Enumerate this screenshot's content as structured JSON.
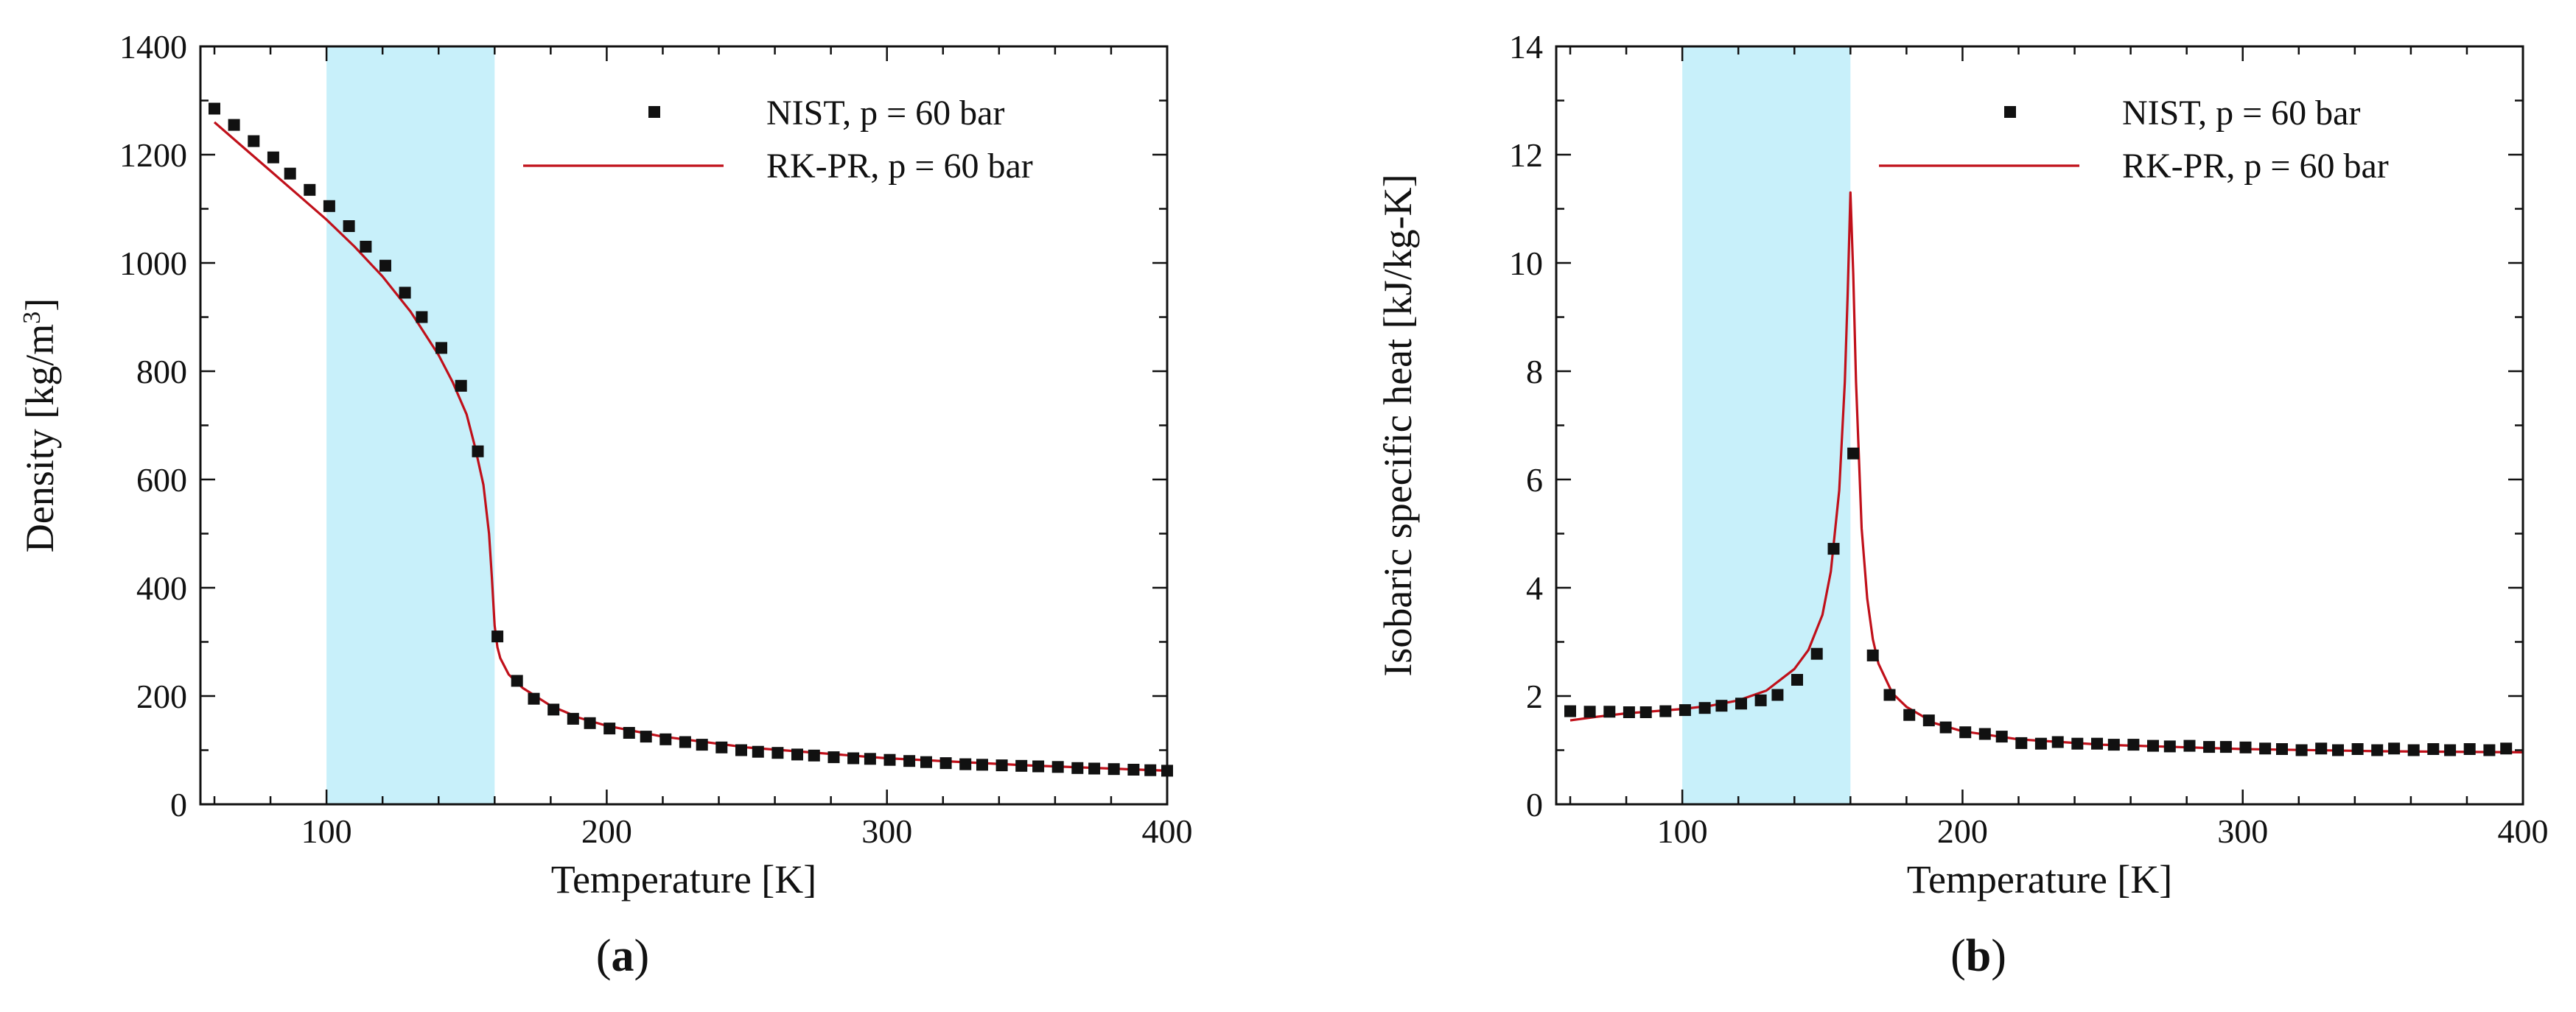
{
  "chart_data": [
    {
      "type": "scatter",
      "panel_label": "(a)",
      "xlabel": "Temperature [K]",
      "ylabel_main": "Density [kg/m",
      "ylabel_sup": "3",
      "ylabel_end": "]",
      "xlim": [
        55,
        400
      ],
      "ylim": [
        0,
        1400
      ],
      "xticks": [
        100,
        200,
        300,
        400
      ],
      "yticks": [
        0,
        200,
        400,
        600,
        800,
        1000,
        1200,
        1400
      ],
      "shaded_region": {
        "x_start": 100,
        "x_end": 160,
        "color": "#c8f0fa"
      },
      "legend_position": "top-right",
      "legend": [
        {
          "label": "NIST, p = 60 bar",
          "marker": "square"
        },
        {
          "label": "RK-PR, p = 60 bar",
          "marker": "line"
        }
      ],
      "series": [
        {
          "name": "NIST, p = 60 bar",
          "style": "markers",
          "color": "#111111",
          "x": [
            60,
            67,
            74,
            81,
            87,
            94,
            101,
            108,
            114,
            121,
            128,
            134,
            141,
            148,
            154,
            161,
            168,
            174,
            181,
            188,
            194,
            201,
            208,
            214,
            221,
            228,
            234,
            241,
            248,
            254,
            261,
            268,
            274,
            281,
            288,
            294,
            301,
            308,
            314,
            321,
            328,
            334,
            341,
            348,
            354,
            361,
            368,
            374,
            381,
            388,
            394,
            400
          ],
          "y": [
            1285,
            1255,
            1225,
            1195,
            1165,
            1135,
            1105,
            1068,
            1030,
            995,
            945,
            900,
            843,
            773,
            652,
            310,
            228,
            195,
            175,
            158,
            150,
            140,
            132,
            125,
            120,
            115,
            110,
            105,
            100,
            97,
            95,
            92,
            90,
            87,
            85,
            84,
            82,
            80,
            78,
            76,
            74,
            73,
            72,
            71,
            70,
            69,
            67,
            66,
            65,
            64,
            63,
            62
          ]
        },
        {
          "name": "RK-PR, p = 60 bar",
          "style": "line",
          "color": "#c0101a",
          "x": [
            60,
            70,
            80,
            90,
            100,
            110,
            120,
            130,
            140,
            145,
            150,
            153,
            156,
            158,
            159,
            160,
            161,
            162,
            165,
            170,
            180,
            190,
            200,
            220,
            250,
            300,
            350,
            400
          ],
          "y": [
            1260,
            1215,
            1170,
            1125,
            1080,
            1030,
            975,
            910,
            830,
            780,
            720,
            660,
            590,
            500,
            420,
            330,
            290,
            270,
            240,
            215,
            182,
            160,
            145,
            125,
            105,
            85,
            72,
            62
          ]
        }
      ]
    },
    {
      "type": "scatter",
      "panel_label": "(b)",
      "xlabel": "Temperature [K]",
      "ylabel": "Isobaric specific heat [kJ/kg-K]",
      "xlim": [
        55,
        400
      ],
      "ylim": [
        0,
        14
      ],
      "xticks": [
        100,
        200,
        300,
        400
      ],
      "yticks": [
        0,
        2,
        4,
        6,
        8,
        10,
        12,
        14
      ],
      "shaded_region": {
        "x_start": 100,
        "x_end": 160,
        "color": "#c8f0fa"
      },
      "legend_position": "top-right",
      "legend": [
        {
          "label": "NIST, p = 60 bar",
          "marker": "square"
        },
        {
          "label": "RK-PR, p = 60 bar",
          "marker": "line"
        }
      ],
      "series": [
        {
          "name": "NIST, p = 60 bar",
          "style": "markers",
          "color": "#111111",
          "x": [
            60,
            67,
            74,
            81,
            87,
            94,
            101,
            108,
            114,
            121,
            128,
            134,
            141,
            148,
            154,
            161,
            168,
            174,
            181,
            188,
            194,
            201,
            208,
            214,
            221,
            228,
            234,
            241,
            248,
            254,
            261,
            268,
            274,
            281,
            288,
            294,
            301,
            308,
            314,
            321,
            328,
            334,
            341,
            348,
            354,
            361,
            368,
            374,
            381,
            388,
            394
          ],
          "y": [
            1.72,
            1.71,
            1.71,
            1.7,
            1.7,
            1.72,
            1.74,
            1.78,
            1.82,
            1.86,
            1.92,
            2.02,
            2.3,
            2.78,
            4.72,
            6.48,
            2.75,
            2.02,
            1.65,
            1.55,
            1.42,
            1.33,
            1.3,
            1.25,
            1.13,
            1.12,
            1.15,
            1.12,
            1.12,
            1.1,
            1.1,
            1.08,
            1.07,
            1.08,
            1.06,
            1.06,
            1.05,
            1.03,
            1.02,
            1.0,
            1.03,
            1.0,
            1.02,
            1.0,
            1.03,
            1.0,
            1.02,
            1.0,
            1.02,
            1.0,
            1.03
          ]
        },
        {
          "name": "RK-PR, p = 60 bar",
          "style": "line",
          "color": "#c0101a",
          "x": [
            60,
            70,
            80,
            90,
            100,
            110,
            120,
            130,
            140,
            145,
            150,
            153,
            156,
            158,
            159,
            160,
            161,
            162,
            164,
            166,
            168,
            170,
            175,
            180,
            190,
            200,
            220,
            250,
            300,
            350,
            400
          ],
          "y": [
            1.55,
            1.62,
            1.68,
            1.72,
            1.76,
            1.82,
            1.92,
            2.1,
            2.5,
            2.85,
            3.5,
            4.3,
            5.8,
            7.8,
            9.4,
            11.3,
            9.8,
            7.8,
            5.1,
            3.8,
            3.05,
            2.6,
            2.05,
            1.8,
            1.5,
            1.35,
            1.2,
            1.1,
            1.02,
            0.98,
            0.96
          ]
        }
      ]
    }
  ]
}
